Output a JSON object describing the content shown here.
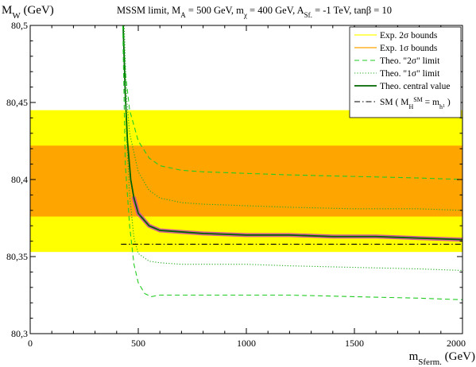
{
  "chart_data": {
    "type": "line",
    "title": {
      "text_a": "MSSM limit, M",
      "sub_a": "A",
      "text_b": " = 500 GeV, m",
      "sub_b": "χ",
      "text_c": " = 400 GeV, A",
      "sub_c": "Sf.",
      "text_d": " = -1 TeV, tanβ = 10"
    },
    "xlabel": {
      "main": "m",
      "sub": "Sferm.",
      "unit": " (GeV)"
    },
    "ylabel": {
      "main": "M",
      "sub": "W",
      "unit": " (GeV)"
    },
    "xlim": [
      0,
      2000
    ],
    "ylim": [
      80.3,
      80.5
    ],
    "x_ticks": [
      {
        "value": 0,
        "label": "0"
      },
      {
        "value": 500,
        "label": "500"
      },
      {
        "value": 1000,
        "label": "1000"
      },
      {
        "value": 1500,
        "label": "1500"
      },
      {
        "value": 2000,
        "label": "2000"
      }
    ],
    "y_ticks": [
      {
        "value": 80.3,
        "label": "80,3"
      },
      {
        "value": 80.35,
        "label": "80,35"
      },
      {
        "value": 80.4,
        "label": "80,4"
      },
      {
        "value": 80.45,
        "label": "80,45"
      },
      {
        "value": 80.5,
        "label": "80,5"
      }
    ],
    "bands": [
      {
        "name": "Exp. 2σ bounds",
        "y_range": [
          80.353,
          80.445
        ],
        "color": "#ffff00"
      },
      {
        "name": "Exp. 1σ bounds",
        "y_range": [
          80.376,
          80.422
        ],
        "color": "#ffa500"
      }
    ],
    "series": [
      {
        "name": "Theo. \"2σ\" limit",
        "style": "dashed",
        "color": "#22cc22",
        "x": [
          430,
          440,
          460,
          500,
          550,
          600,
          700,
          800,
          1000,
          1200,
          1500,
          1800,
          2000
        ],
        "y": [
          80.5,
          80.47,
          80.445,
          80.425,
          80.414,
          80.409,
          80.406,
          80.405,
          80.404,
          80.403,
          80.402,
          80.401,
          80.4
        ]
      },
      {
        "name": "Theo. \"1σ\" limit",
        "style": "dotted",
        "color": "#22aa22",
        "x": [
          435,
          445,
          460,
          500,
          550,
          600,
          700,
          800,
          1000,
          1200,
          1500,
          1800,
          2000
        ],
        "y": [
          80.5,
          80.455,
          80.43,
          80.405,
          80.393,
          80.388,
          80.385,
          80.384,
          80.383,
          80.382,
          80.381,
          80.381,
          80.38
        ]
      },
      {
        "name": "Theo. central value",
        "style": "solid",
        "color": "#006400",
        "highlight": "#cc44aa",
        "highlight_from_x": 480,
        "x": [
          430,
          440,
          450,
          465,
          480,
          500,
          550,
          600,
          700,
          800,
          1000,
          1200,
          1400,
          1600,
          1800,
          2000
        ],
        "y": [
          80.5,
          80.455,
          80.425,
          80.4,
          80.388,
          80.378,
          80.37,
          80.367,
          80.366,
          80.365,
          80.364,
          80.364,
          80.363,
          80.363,
          80.362,
          80.361
        ]
      },
      {
        "name": "Theo. \"1σ\" limit",
        "style": "dotted",
        "color": "#22aa22",
        "legend": false,
        "x": [
          432,
          445,
          460,
          480,
          500,
          550,
          600,
          700,
          800,
          1000,
          1200,
          1500,
          1800,
          2000
        ],
        "y": [
          80.5,
          80.43,
          80.39,
          80.362,
          80.352,
          80.347,
          80.346,
          80.345,
          80.345,
          80.345,
          80.344,
          80.343,
          80.342,
          80.341
        ]
      },
      {
        "name": "Theo. \"2σ\" limit",
        "style": "dashed",
        "color": "#22cc22",
        "legend": false,
        "x": [
          428,
          440,
          460,
          480,
          500,
          530,
          560,
          600,
          700,
          800,
          1000,
          1200,
          1500,
          1800,
          2000
        ],
        "y": [
          80.5,
          80.41,
          80.37,
          80.345,
          80.333,
          80.326,
          80.324,
          80.325,
          80.325,
          80.325,
          80.325,
          80.325,
          80.324,
          80.323,
          80.322
        ]
      },
      {
        "name": "SM",
        "style": "dashdot",
        "color": "#000000",
        "x": [
          420,
          2000
        ],
        "y": [
          80.358,
          80.358
        ]
      }
    ],
    "legend": {
      "placement": "top-right",
      "entries": [
        {
          "label": "Exp. 2σ bounds",
          "style": "band",
          "color": "#ffff00"
        },
        {
          "label": "Exp. 1σ bounds",
          "style": "band",
          "color": "#ffa500"
        },
        {
          "label": "Theo. \"2σ\" limit",
          "style": "dashed",
          "color": "#22cc22"
        },
        {
          "label": "Theo. \"1σ\" limit",
          "style": "dotted",
          "color": "#22aa22"
        },
        {
          "label": "Theo. central value",
          "style": "solid",
          "color": "#006400"
        }
      ],
      "sm_entry": {
        "style": "dashdot",
        "color": "#000000",
        "prefix": "SM ( M",
        "sub_h": "H",
        "sup_sm": "SM",
        "mid": " = m",
        "sub_hh": "h",
        "sub_sub": "1",
        "suffix": " )"
      }
    },
    "grid": false
  }
}
